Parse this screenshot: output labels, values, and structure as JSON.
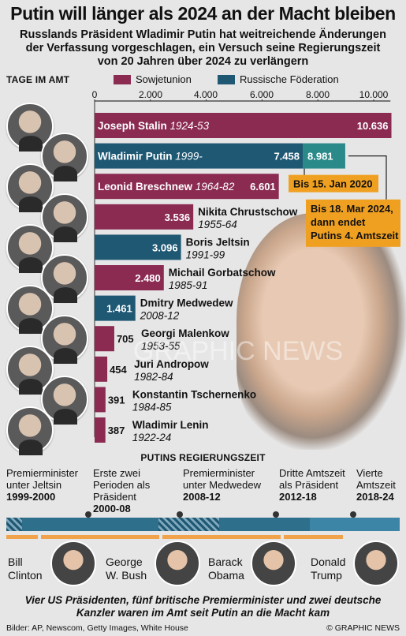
{
  "title": "Putin will länger als 2024 an der Macht bleiben",
  "subtitle": [
    "Russlands Präsident Wladimir Putin hat weitreichende Änderungen",
    "der Verfassung vorgeschlagen, ein Versuch seine Regierungszeit",
    "von 20 Jahren über 2024 zu verlängern"
  ],
  "chart_header": "TAGE IM AMT",
  "legend": [
    {
      "label": "Sowjetunion",
      "color": "#8b2b52"
    },
    {
      "label": "Russische Föderation",
      "color": "#1f5873"
    }
  ],
  "colors": {
    "soviet": "#8b2b52",
    "russia": "#1f5873",
    "extension": "#2a8a8a",
    "callout": "#f0a020",
    "axis": "#333333"
  },
  "chart_data": {
    "type": "bar",
    "orientation": "horizontal",
    "xlabel": "TAGE IM AMT",
    "xlim": [
      0,
      11000
    ],
    "xticks": [
      "0",
      "2.000",
      "4.000",
      "6.000",
      "8.000",
      "10.000"
    ],
    "xtick_values": [
      0,
      2000,
      4000,
      6000,
      8000,
      10000
    ],
    "legend_placement": "top",
    "bars": [
      {
        "name": "Joseph Stalin",
        "years": "1924-53",
        "value": 10636,
        "label": "10.636",
        "group": "soviet"
      },
      {
        "name": "Wladimir Putin",
        "years": "1999-",
        "value": 7458,
        "label": "7.458",
        "extension_value": 8981,
        "extension_label": "8.981",
        "group": "russia"
      },
      {
        "name": "Leonid Breschnew",
        "years": "1964-82",
        "value": 6601,
        "label": "6.601",
        "group": "soviet"
      },
      {
        "name": "Nikita Chrustschow",
        "years": "1955-64",
        "value": 3536,
        "label": "3.536",
        "group": "soviet"
      },
      {
        "name": "Boris Jeltsin",
        "years": "1991-99",
        "value": 3096,
        "label": "3.096",
        "group": "russia"
      },
      {
        "name": "Michail Gorbatschow",
        "years": "1985-91",
        "value": 2480,
        "label": "2.480",
        "group": "soviet"
      },
      {
        "name": "Dmitry Medwedew",
        "years": "2008-12",
        "value": 1461,
        "label": "1.461",
        "group": "russia"
      },
      {
        "name": "Georgi Malenkow",
        "years": "1953-55",
        "value": 705,
        "label": "705",
        "group": "soviet"
      },
      {
        "name": "Juri Andropow",
        "years": "1982-84",
        "value": 454,
        "label": "454",
        "group": "soviet"
      },
      {
        "name": "Konstantin Tschernenko",
        "years": "1984-85",
        "value": 391,
        "label": "391",
        "group": "soviet"
      },
      {
        "name": "Wladimir Lenin",
        "years": "1922-24",
        "value": 387,
        "label": "387",
        "group": "soviet"
      }
    ],
    "annotations": [
      "Bis 15. Jan 2020",
      "Bis 18. Mar 2024, dann endet Putins 4. Amtszeit"
    ]
  },
  "callouts": {
    "jan2020": "Bis 15. Jan 2020",
    "mar2024_line1": "Bis 18. Mar 2024,",
    "mar2024_line2": "dann endet",
    "mar2024_line3": "Putins 4. Amtszeit"
  },
  "watermark": "GRAPHIC NEWS",
  "timeline": {
    "heading": "PUTINS REGIERUNGSZEIT",
    "periods": [
      {
        "lines": [
          "Premierminister",
          "unter Jeltsin"
        ],
        "years": "1999-2000"
      },
      {
        "lines": [
          "Erste zwei",
          "Perioden als",
          "Präsident"
        ],
        "years": "2000-08"
      },
      {
        "lines": [
          "Premierminister",
          "unter Medwedew"
        ],
        "years": "2008-12"
      },
      {
        "lines": [
          "Dritte Amtszeit",
          "als Präsident"
        ],
        "years": "2012-18"
      },
      {
        "lines": [
          "Vierte",
          "Amtszeit"
        ],
        "years": "2018-24"
      }
    ],
    "us_presidents": [
      {
        "line1": "Bill",
        "line2": "Clinton"
      },
      {
        "line1": "George",
        "line2": "W. Bush"
      },
      {
        "line1": "Barack",
        "line2": "Obama"
      },
      {
        "line1": "Donald",
        "line2": "Trump"
      }
    ]
  },
  "caption": [
    "Vier US Präsidenten, fünf britische Premierminister und zwei deutsche",
    "Kanzler waren im Amt seit Putin an die Macht kam"
  ],
  "credit_left": "Bilder: AP, Newscom, Getty Images, White House",
  "credit_right": "© GRAPHIC NEWS"
}
